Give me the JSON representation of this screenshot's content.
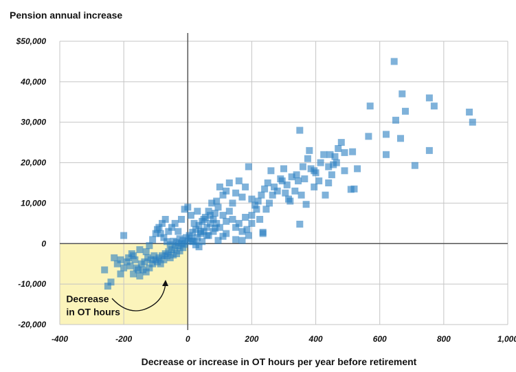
{
  "chart_data": {
    "type": "scatter",
    "title": "Pension annual increase",
    "xlabel": "Decrease or increase in OT hours per year before retirement",
    "ylabel": "",
    "xlim": [
      -400,
      1000
    ],
    "ylim": [
      -20000,
      50000
    ],
    "grid": true,
    "x_ticks": [
      -400,
      -200,
      0,
      200,
      400,
      600,
      800,
      1000
    ],
    "x_tick_labels": [
      "-400",
      "-200",
      "0",
      "200",
      "400",
      "600",
      "800",
      "1,000"
    ],
    "y_ticks": [
      50000,
      40000,
      30000,
      20000,
      10000,
      0,
      -10000,
      -20000
    ],
    "y_tick_labels": [
      "$50,000",
      "40,000",
      "30,000",
      "20,000",
      "10,000",
      "0",
      "-10,000",
      "-20,000"
    ],
    "highlight_region": {
      "x": [
        -400,
        0
      ],
      "y": [
        -20000,
        0
      ],
      "color": "#fbf4bb"
    },
    "annotation": {
      "lines": [
        "Decrease",
        "in OT hours"
      ],
      "x": -380,
      "y": -14500
    },
    "marker_color": "#2a7ec1",
    "points": [
      [
        645,
        45000
      ],
      [
        570,
        34000
      ],
      [
        670,
        37000
      ],
      [
        755,
        36000
      ],
      [
        770,
        34000
      ],
      [
        880,
        32500
      ],
      [
        890,
        30000
      ],
      [
        680,
        32700
      ],
      [
        650,
        30500
      ],
      [
        665,
        26000
      ],
      [
        565,
        26500
      ],
      [
        620,
        27000
      ],
      [
        620,
        22000
      ],
      [
        755,
        23000
      ],
      [
        710,
        19300
      ],
      [
        480,
        25000
      ],
      [
        470,
        23500
      ],
      [
        460,
        21500
      ],
      [
        490,
        22500
      ],
      [
        515,
        22700
      ],
      [
        530,
        18500
      ],
      [
        445,
        22000
      ],
      [
        440,
        19000
      ],
      [
        450,
        17000
      ],
      [
        440,
        15000
      ],
      [
        490,
        18000
      ],
      [
        510,
        13400
      ],
      [
        520,
        13500
      ],
      [
        430,
        12000
      ],
      [
        410,
        15500
      ],
      [
        395,
        14000
      ],
      [
        350,
        28000
      ],
      [
        380,
        23000
      ],
      [
        375,
        21000
      ],
      [
        395,
        18000
      ],
      [
        360,
        19000
      ],
      [
        345,
        15500
      ],
      [
        335,
        13000
      ],
      [
        370,
        9700
      ],
      [
        350,
        4800
      ],
      [
        320,
        10500
      ],
      [
        310,
        14500
      ],
      [
        300,
        18500
      ],
      [
        290,
        16000
      ],
      [
        270,
        14000
      ],
      [
        260,
        18000
      ],
      [
        250,
        15000
      ],
      [
        240,
        13500
      ],
      [
        230,
        12000
      ],
      [
        220,
        10500
      ],
      [
        215,
        8500
      ],
      [
        200,
        7000
      ],
      [
        190,
        19000
      ],
      [
        180,
        14000
      ],
      [
        170,
        11500
      ],
      [
        160,
        15500
      ],
      [
        150,
        12500
      ],
      [
        140,
        10000
      ],
      [
        130,
        15000
      ],
      [
        120,
        13000
      ],
      [
        110,
        12000
      ],
      [
        100,
        14000
      ],
      [
        95,
        9000
      ],
      [
        90,
        10500
      ],
      [
        85,
        7500
      ],
      [
        80,
        6000
      ],
      [
        75,
        10000
      ],
      [
        70,
        5000
      ],
      [
        65,
        8000
      ],
      [
        60,
        4000
      ],
      [
        55,
        6500
      ],
      [
        50,
        3000
      ],
      [
        45,
        5500
      ],
      [
        40,
        2500
      ],
      [
        35,
        4500
      ],
      [
        30,
        1500
      ],
      [
        25,
        3500
      ],
      [
        20,
        500
      ],
      [
        15,
        2800
      ],
      [
        10,
        1200
      ],
      [
        5,
        2000
      ],
      [
        0,
        500
      ],
      [
        -5,
        1500
      ],
      [
        -10,
        -200
      ],
      [
        -15,
        800
      ],
      [
        -20,
        0
      ],
      [
        -25,
        1200
      ],
      [
        -30,
        -500
      ],
      [
        -35,
        300
      ],
      [
        -40,
        -1000
      ],
      [
        -45,
        600
      ],
      [
        -50,
        -1500
      ],
      [
        -55,
        -300
      ],
      [
        -60,
        -2000
      ],
      [
        -65,
        500
      ],
      [
        -70,
        -2500
      ],
      [
        -75,
        1500
      ],
      [
        -80,
        -3000
      ],
      [
        -85,
        2500
      ],
      [
        -90,
        -3500
      ],
      [
        -95,
        3500
      ],
      [
        -100,
        -4000
      ],
      [
        -110,
        -5000
      ],
      [
        -120,
        -6000
      ],
      [
        -130,
        -7000
      ],
      [
        -140,
        -6500
      ],
      [
        -150,
        -8000
      ],
      [
        -160,
        -6000
      ],
      [
        -170,
        -7500
      ],
      [
        -180,
        -5500
      ],
      [
        -190,
        -4500
      ],
      [
        -200,
        -6000
      ],
      [
        -210,
        -4000
      ],
      [
        -220,
        -5000
      ],
      [
        -230,
        -3500
      ],
      [
        -240,
        -9500
      ],
      [
        -250,
        -10500
      ],
      [
        -260,
        -6500
      ],
      [
        -200,
        2000
      ],
      [
        -210,
        -7500
      ],
      [
        -170,
        -3000
      ],
      [
        -150,
        -1500
      ],
      [
        -130,
        -2000
      ],
      [
        -120,
        -500
      ],
      [
        -110,
        1000
      ],
      [
        -100,
        2500
      ],
      [
        -90,
        4000
      ],
      [
        -80,
        5000
      ],
      [
        -70,
        6000
      ],
      [
        -60,
        3000
      ],
      [
        -50,
        4000
      ],
      [
        -40,
        5000
      ],
      [
        -30,
        3000
      ],
      [
        -20,
        6000
      ],
      [
        -10,
        8500
      ],
      [
        0,
        9000
      ],
      [
        10,
        7000
      ],
      [
        20,
        5000
      ],
      [
        30,
        8000
      ],
      [
        40,
        3000
      ],
      [
        50,
        6000
      ],
      [
        60,
        2000
      ],
      [
        70,
        7000
      ],
      [
        80,
        3000
      ],
      [
        90,
        5000
      ],
      [
        100,
        4000
      ],
      [
        110,
        7000
      ],
      [
        120,
        5500
      ],
      [
        130,
        8000
      ],
      [
        140,
        6000
      ],
      [
        150,
        4000
      ],
      [
        160,
        5000
      ],
      [
        170,
        3000
      ],
      [
        180,
        6500
      ],
      [
        190,
        2000
      ],
      [
        200,
        11000
      ],
      [
        210,
        9500
      ],
      [
        225,
        6000
      ],
      [
        235,
        2500
      ],
      [
        245,
        8500
      ],
      [
        255,
        10000
      ],
      [
        265,
        12000
      ],
      [
        280,
        13000
      ],
      [
        295,
        15500
      ],
      [
        305,
        12500
      ],
      [
        315,
        11000
      ],
      [
        325,
        16500
      ],
      [
        340,
        17000
      ],
      [
        355,
        12000
      ],
      [
        365,
        16000
      ],
      [
        385,
        18500
      ],
      [
        400,
        17500
      ],
      [
        415,
        20000
      ],
      [
        425,
        22000
      ],
      [
        455,
        19500
      ],
      [
        465,
        20000
      ],
      [
        235,
        2800
      ],
      [
        150,
        1000
      ],
      [
        170,
        800
      ],
      [
        185,
        3500
      ],
      [
        200,
        5000
      ],
      [
        120,
        2500
      ],
      [
        110,
        1800
      ],
      [
        95,
        800
      ],
      [
        85,
        3800
      ],
      [
        65,
        2000
      ],
      [
        45,
        500
      ],
      [
        35,
        -800
      ],
      [
        25,
        -300
      ],
      [
        15,
        600
      ],
      [
        -15,
        -1000
      ],
      [
        -25,
        -1800
      ],
      [
        -35,
        -2500
      ],
      [
        -45,
        -2800
      ],
      [
        -55,
        -3500
      ],
      [
        -65,
        -3000
      ],
      [
        -75,
        -4000
      ],
      [
        -85,
        -5000
      ],
      [
        -95,
        -4500
      ],
      [
        -105,
        -3000
      ],
      [
        -115,
        -4000
      ],
      [
        -125,
        -3500
      ],
      [
        -135,
        -4500
      ],
      [
        -145,
        -5000
      ],
      [
        -155,
        -6500
      ],
      [
        -165,
        -4000
      ],
      [
        -175,
        -2500
      ],
      [
        -185,
        -3500
      ]
    ]
  }
}
